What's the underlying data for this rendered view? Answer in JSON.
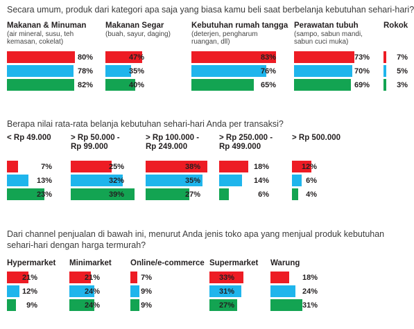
{
  "colors": {
    "red": "#ed1c24",
    "blue": "#1fb5ec",
    "green": "#13a452"
  },
  "sections": [
    {
      "question": "Secara umum, produk dari kategori apa saja yang biasa kamu beli saat berbelanja kebutuhan sehari-hari?",
      "groups": [
        {
          "title": "Makanan & Minuman",
          "subtitle": [
            "(air mineral, susu, teh",
            "kemasan, cokelat)"
          ],
          "values": [
            "80%",
            "78%",
            "82%"
          ]
        },
        {
          "title": "Makanan Segar",
          "subtitle": [
            "(buah, sayur, daging)"
          ],
          "values": [
            "47%",
            "35%",
            "40%"
          ]
        },
        {
          "title": "Kebutuhan rumah tangga",
          "subtitle": [
            "(deterjen, pengharum",
            "ruangan, dll)"
          ],
          "values": [
            "83%",
            "76%",
            "65%"
          ]
        },
        {
          "title": "Perawatan tubuh",
          "subtitle": [
            "(sampo, sabun mandi,",
            "sabun cuci muka)"
          ],
          "values": [
            "73%",
            "70%",
            "69%"
          ]
        },
        {
          "title": "Rokok",
          "subtitle": [],
          "values": [
            "7%",
            "5%",
            "3%"
          ]
        }
      ]
    },
    {
      "question": "Berapa nilai rata-rata belanja kebutuhan sehari-hari Anda per transaksi?",
      "groups": [
        {
          "title": "< Rp 49.000",
          "subtitle": [],
          "values": [
            "7%",
            "13%",
            "23%"
          ]
        },
        {
          "title": "> Rp 50.000 -",
          "subtitle": [
            "Rp 99.000"
          ],
          "values": [
            "25%",
            "32%",
            "39%"
          ]
        },
        {
          "title": "> Rp 100.000 -",
          "subtitle": [
            "Rp 249.000"
          ],
          "values": [
            "38%",
            "35%",
            "27%"
          ]
        },
        {
          "title": "> Rp 250.000 -",
          "subtitle": [
            "Rp 499.000"
          ],
          "values": [
            "18%",
            "14%",
            "6%"
          ]
        },
        {
          "title": "> Rp 500.000",
          "subtitle": [],
          "values": [
            "12%",
            "6%",
            "4%"
          ]
        }
      ]
    },
    {
      "question": "Dari channel penjualan di bawah ini, menurut Anda jenis toko apa yang menjual produk kebutuhan sehari-hari dengan harga termurah?",
      "groups": [
        {
          "title": "Hypermarket",
          "subtitle": [],
          "values": [
            "21%",
            "12%",
            "9%"
          ]
        },
        {
          "title": "Minimarket",
          "subtitle": [],
          "values": [
            "21%",
            "24%",
            "24%"
          ]
        },
        {
          "title": "Online/e-commerce",
          "subtitle": [],
          "values": [
            "7%",
            "9%",
            "9%"
          ]
        },
        {
          "title": "Supermarket",
          "subtitle": [],
          "values": [
            "33%",
            "31%",
            "27%"
          ]
        },
        {
          "title": "Warung",
          "subtitle": [],
          "values": [
            "18%",
            "24%",
            "31%"
          ]
        }
      ]
    }
  ],
  "chart_data": [
    {
      "type": "bar",
      "title": "Secara umum, produk dari kategori apa saja yang biasa kamu beli saat berbelanja kebutuhan sehari-hari?",
      "categories": [
        "Makanan & Minuman",
        "Makanan Segar",
        "Kebutuhan rumah tangga",
        "Perawatan tubuh",
        "Rokok"
      ],
      "series": [
        {
          "values": [
            80,
            47,
            83,
            73,
            7
          ]
        },
        {
          "values": [
            78,
            35,
            76,
            70,
            5
          ]
        },
        {
          "values": [
            82,
            40,
            65,
            69,
            3
          ]
        }
      ]
    },
    {
      "type": "bar",
      "title": "Berapa nilai rata-rata belanja kebutuhan sehari-hari Anda per transaksi?",
      "categories": [
        "< Rp 49.000",
        "> Rp 50.000 - Rp 99.000",
        "> Rp 100.000 - Rp 249.000",
        "> Rp 250.000 - Rp 499.000",
        "> Rp 500.000"
      ],
      "series": [
        {
          "values": [
            7,
            25,
            38,
            18,
            12
          ]
        },
        {
          "values": [
            13,
            32,
            35,
            14,
            6
          ]
        },
        {
          "values": [
            23,
            39,
            27,
            6,
            4
          ]
        }
      ]
    },
    {
      "type": "bar",
      "title": "Dari channel penjualan di bawah ini, menurut Anda jenis toko apa yang menjual produk kebutuhan sehari-hari dengan harga termurah?",
      "categories": [
        "Hypermarket",
        "Minimarket",
        "Online/e-commerce",
        "Supermarket",
        "Warung"
      ],
      "series": [
        {
          "values": [
            21,
            21,
            7,
            33,
            18
          ]
        },
        {
          "values": [
            12,
            24,
            9,
            31,
            24
          ]
        },
        {
          "values": [
            9,
            24,
            9,
            27,
            31
          ]
        }
      ]
    }
  ]
}
